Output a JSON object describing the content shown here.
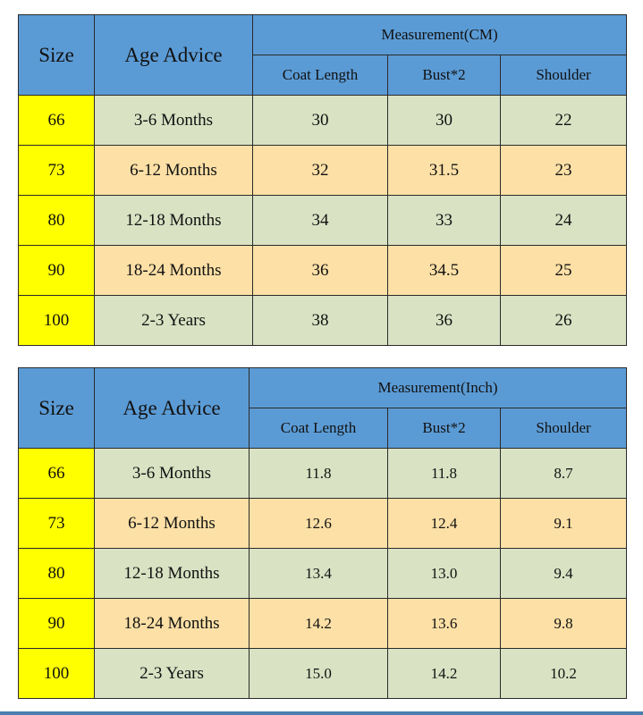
{
  "tables": [
    {
      "id": "cm",
      "headers": {
        "size": "Size",
        "age": "Age Advice",
        "group": "Measurement(CM)",
        "coat": "Coat Length",
        "bust": "Bust*2",
        "shoulder": "Shoulder"
      },
      "rows": [
        {
          "size": "66",
          "age": "3-6 Months",
          "coat": "30",
          "bust": "30",
          "shoulder": "22"
        },
        {
          "size": "73",
          "age": "6-12 Months",
          "coat": "32",
          "bust": "31.5",
          "shoulder": "23"
        },
        {
          "size": "80",
          "age": "12-18 Months",
          "coat": "34",
          "bust": "33",
          "shoulder": "24"
        },
        {
          "size": "90",
          "age": "18-24 Months",
          "coat": "36",
          "bust": "34.5",
          "shoulder": "25"
        },
        {
          "size": "100",
          "age": "2-3 Years",
          "coat": "38",
          "bust": "36",
          "shoulder": "26"
        }
      ]
    },
    {
      "id": "inch",
      "headers": {
        "size": "Size",
        "age": "Age Advice",
        "group": "Measurement(Inch)",
        "coat": "Coat Length",
        "bust": "Bust*2",
        "shoulder": "Shoulder"
      },
      "rows": [
        {
          "size": "66",
          "age": "3-6 Months",
          "coat": "11.8",
          "bust": "11.8",
          "shoulder": "8.7"
        },
        {
          "size": "73",
          "age": "6-12 Months",
          "coat": "12.6",
          "bust": "12.4",
          "shoulder": "9.1"
        },
        {
          "size": "80",
          "age": "12-18 Months",
          "coat": "13.4",
          "bust": "13.0",
          "shoulder": "9.4"
        },
        {
          "size": "90",
          "age": "18-24 Months",
          "coat": "14.2",
          "bust": "13.6",
          "shoulder": "9.8"
        },
        {
          "size": "100",
          "age": "2-3 Years",
          "coat": "15.0",
          "bust": "14.2",
          "shoulder": "10.2"
        }
      ]
    }
  ],
  "colors": {
    "header_blue": "#5b9bd5",
    "size_yellow": "#ffff00",
    "row_green": "#d9e2c3",
    "row_orange": "#fde0a6"
  }
}
